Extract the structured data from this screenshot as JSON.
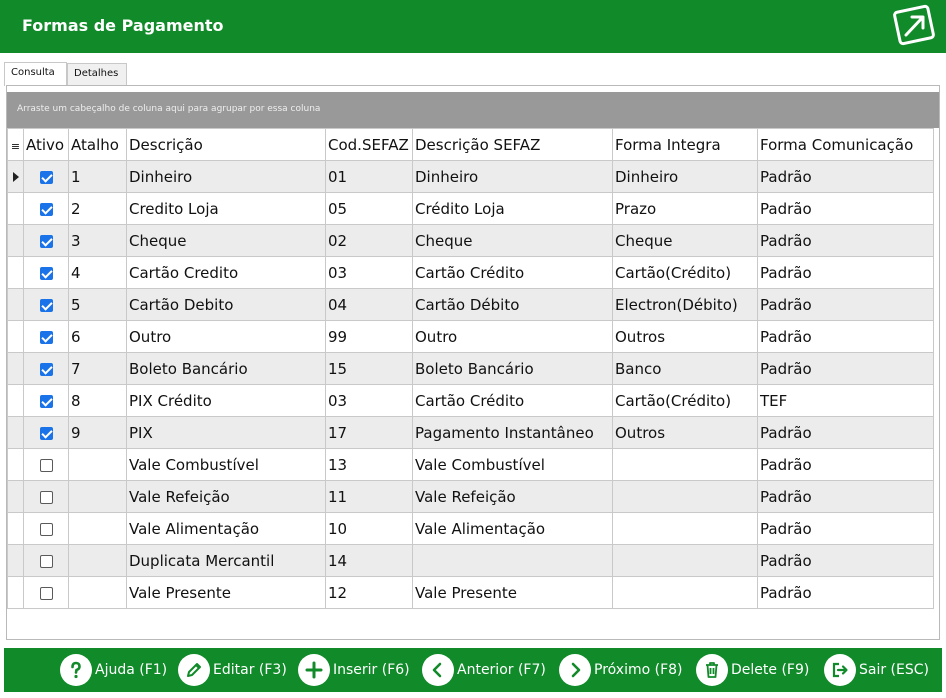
{
  "window": {
    "title": "Formas de Pagamento"
  },
  "tabs": [
    {
      "label": "Consulta"
    },
    {
      "label": "Detalhes"
    }
  ],
  "grid": {
    "group_hint": "Arraste um cabeçalho de coluna aqui para agrupar por essa coluna",
    "columns": [
      "Ativo",
      "Atalho",
      "Descrição",
      "Cod.SEFAZ",
      "Descrição SEFAZ",
      "Forma Integra",
      "Forma Comunicação"
    ],
    "rows": [
      {
        "ativo": true,
        "atalho": "1",
        "descricao": "Dinheiro",
        "cod": "01",
        "desc_sefaz": "Dinheiro",
        "integra": "Dinheiro",
        "comunicacao": "Padrão"
      },
      {
        "ativo": true,
        "atalho": "2",
        "descricao": "Credito Loja",
        "cod": "05",
        "desc_sefaz": "Crédito Loja",
        "integra": "Prazo",
        "comunicacao": "Padrão"
      },
      {
        "ativo": true,
        "atalho": "3",
        "descricao": "Cheque",
        "cod": "02",
        "desc_sefaz": "Cheque",
        "integra": "Cheque",
        "comunicacao": "Padrão"
      },
      {
        "ativo": true,
        "atalho": "4",
        "descricao": "Cartão Credito",
        "cod": "03",
        "desc_sefaz": "Cartão Crédito",
        "integra": "Cartão(Crédito)",
        "comunicacao": "Padrão"
      },
      {
        "ativo": true,
        "atalho": "5",
        "descricao": "Cartão Debito",
        "cod": "04",
        "desc_sefaz": "Cartão Débito",
        "integra": "Electron(Débito)",
        "comunicacao": "Padrão"
      },
      {
        "ativo": true,
        "atalho": "6",
        "descricao": "Outro",
        "cod": "99",
        "desc_sefaz": "Outro",
        "integra": "Outros",
        "comunicacao": "Padrão"
      },
      {
        "ativo": true,
        "atalho": "7",
        "descricao": "Boleto Bancário",
        "cod": "15",
        "desc_sefaz": "Boleto Bancário",
        "integra": "Banco",
        "comunicacao": "Padrão"
      },
      {
        "ativo": true,
        "atalho": "8",
        "descricao": "PIX Crédito",
        "cod": "03",
        "desc_sefaz": "Cartão Crédito",
        "integra": "Cartão(Crédito)",
        "comunicacao": "TEF"
      },
      {
        "ativo": true,
        "atalho": "9",
        "descricao": "PIX",
        "cod": "17",
        "desc_sefaz": "Pagamento Instantâneo",
        "integra": "Outros",
        "comunicacao": "Padrão"
      },
      {
        "ativo": false,
        "atalho": "",
        "descricao": "Vale Combustível",
        "cod": "13",
        "desc_sefaz": "Vale Combustível",
        "integra": "",
        "comunicacao": "Padrão"
      },
      {
        "ativo": false,
        "atalho": "",
        "descricao": "Vale Refeição",
        "cod": "11",
        "desc_sefaz": "Vale Refeição",
        "integra": "",
        "comunicacao": "Padrão"
      },
      {
        "ativo": false,
        "atalho": "",
        "descricao": "Vale Alimentação",
        "cod": "10",
        "desc_sefaz": "Vale Alimentação",
        "integra": "",
        "comunicacao": "Padrão"
      },
      {
        "ativo": false,
        "atalho": "",
        "descricao": "Duplicata Mercantil",
        "cod": "14",
        "desc_sefaz": "",
        "integra": "",
        "comunicacao": "Padrão"
      },
      {
        "ativo": false,
        "atalho": "",
        "descricao": "Vale Presente",
        "cod": "12",
        "desc_sefaz": "Vale Presente",
        "integra": "",
        "comunicacao": "Padrão"
      }
    ]
  },
  "toolbar": {
    "buttons": [
      {
        "label": "Ajuda (F1)",
        "icon": "help-icon"
      },
      {
        "label": "Editar (F3)",
        "icon": "pencil-icon"
      },
      {
        "label": "Inserir (F6)",
        "icon": "plus-icon"
      },
      {
        "label": "Anterior (F7)",
        "icon": "chevron-left-icon"
      },
      {
        "label": "Próximo (F8)",
        "icon": "chevron-right-icon"
      },
      {
        "label": "Delete (F9)",
        "icon": "trash-icon"
      },
      {
        "label": "Sair (ESC)",
        "icon": "exit-icon"
      }
    ]
  },
  "colors": {
    "brand": "#118a2a",
    "group_bar": "#999999",
    "checkbox": "#1a73e8"
  }
}
